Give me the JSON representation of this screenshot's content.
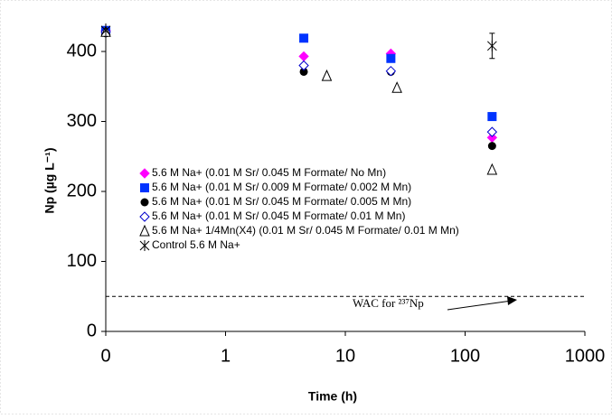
{
  "chart_data": {
    "type": "scatter",
    "x_label": "Time (h)",
    "y_label": "Np (µg L⁻¹)",
    "xlim": [
      0.1,
      1000
    ],
    "xticks": [
      {
        "value": 0.1,
        "label": "0"
      },
      1,
      10,
      100,
      1000
    ],
    "xlog": true,
    "ylim": [
      0,
      440
    ],
    "yticks": [
      0,
      100,
      200,
      300,
      400
    ],
    "reference_line": 50,
    "annotation": "WAC for ²³⁷Np",
    "series": [
      {
        "name": "5.6 M Na+ (0.01 M Sr/ 0.045 M Formate/ No Mn)",
        "color": "#ff00ff",
        "marker": "diamond",
        "x": [
          0.1,
          4.5,
          24,
          168
        ],
        "values": [
          430,
          393,
          397,
          277
        ]
      },
      {
        "name": "5.6 M Na+ (0.01 M Sr/ 0.009 M Formate/ 0.002 M Mn)",
        "color": "#0033ff",
        "marker": "square",
        "x": [
          0.1,
          4.5,
          24,
          168
        ],
        "values": [
          430,
          419,
          390,
          307
        ]
      },
      {
        "name": "5.6 M Na+ (0.01 M Sr/ 0.045 M Formate/ 0.005 M Mn)",
        "color": "#000000",
        "marker": "circle",
        "x": [
          0.1,
          4.5,
          24,
          168
        ],
        "values": [
          426,
          371,
          371,
          265
        ]
      },
      {
        "name": "5.6 M Na+ (0.01 M Sr/ 0.045 M Formate/ 0.01 M Mn)",
        "color": "#0000cc",
        "marker": "diamond-open",
        "x": [
          0.1,
          4.5,
          24,
          168
        ],
        "values": [
          428,
          380,
          372,
          285
        ]
      },
      {
        "name": "5.6 M Na+ 1/4Mn(X4) (0.01 M Sr/ 0.045 M Formate/ 0.01 M Mn)",
        "color": "#000000",
        "marker": "triangle-open",
        "x": [
          0.1,
          7,
          27,
          168
        ],
        "values": [
          428,
          365,
          348,
          231
        ]
      },
      {
        "name": "Control 5.6 M Na+",
        "color": "#000000",
        "marker": "star",
        "x": [
          0.1,
          168
        ],
        "values": [
          430,
          408
        ],
        "errors": [
          0,
          18
        ]
      }
    ]
  }
}
